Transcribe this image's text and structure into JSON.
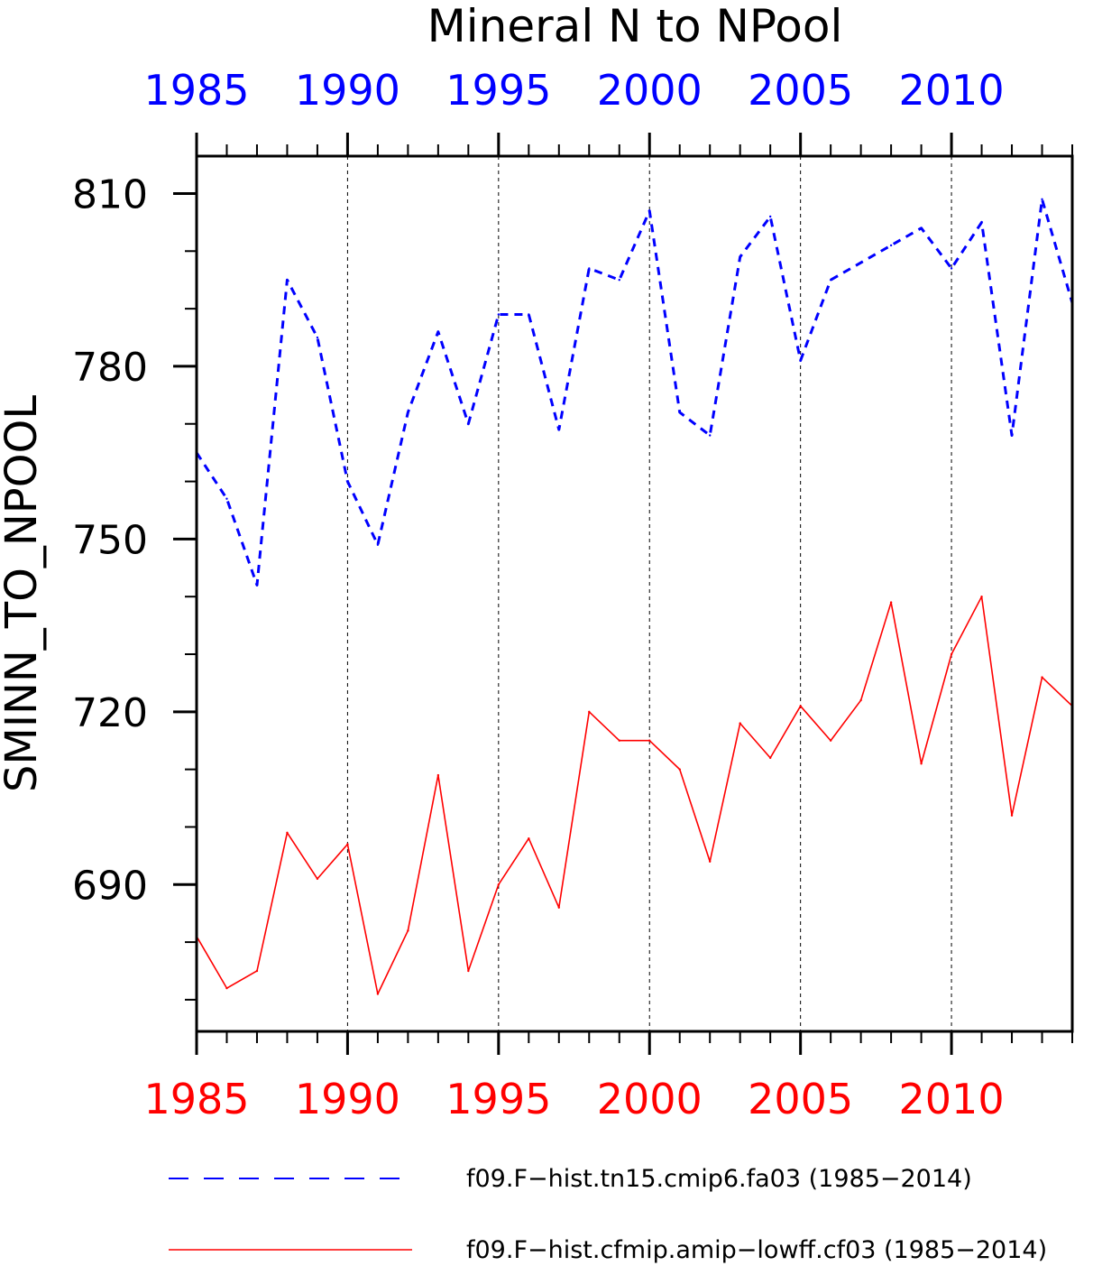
{
  "chart_data": {
    "type": "line",
    "title": "Mineral N to NPool",
    "ylabel": "SMINN_TO_NPOOL",
    "xlabel": "",
    "xlim": [
      1985,
      2014
    ],
    "ylim": [
      664.5,
      816.5
    ],
    "x_ticks": [
      1985,
      1990,
      1995,
      2000,
      2005,
      2010
    ],
    "x_tick_labels": [
      "1985",
      "1990",
      "1995",
      "2000",
      "2005",
      "2010"
    ],
    "y_ticks": [
      690,
      720,
      750,
      780,
      810
    ],
    "y_tick_labels": [
      "690",
      "720",
      "750",
      "780",
      "810"
    ],
    "y_minor_step": 10,
    "grid": "dashed vertical lines at major x ticks",
    "legend_placement": "bottom",
    "colors": {
      "series_1": "#0000ff",
      "series_2": "#ff0000",
      "axes": "#000000"
    },
    "x": [
      1985,
      1986,
      1987,
      1988,
      1989,
      1990,
      1991,
      1992,
      1993,
      1994,
      1995,
      1996,
      1997,
      1998,
      1999,
      2000,
      2001,
      2002,
      2003,
      2004,
      2005,
      2006,
      2007,
      2008,
      2009,
      2010,
      2011,
      2012,
      2013,
      2014
    ],
    "series": [
      {
        "name": "f09.F−hist.tn15.cmip6.fa03 (1985−2014)",
        "line_style": "dashed",
        "values": [
          765,
          757,
          742,
          795,
          785,
          760,
          749,
          772,
          786,
          770,
          789,
          789,
          769,
          797,
          795,
          807,
          772,
          768,
          799,
          806,
          781,
          795,
          798,
          801,
          804,
          797,
          805,
          768,
          809,
          791
        ]
      },
      {
        "name": "f09.F−hist.cfmip.amip−lowff.cf03 (1985−2014)",
        "line_style": "solid",
        "values": [
          681,
          672,
          675,
          699,
          691,
          697,
          671,
          682,
          709,
          675,
          690,
          698,
          686,
          720,
          715,
          715,
          710,
          694,
          718,
          712,
          721,
          715,
          722,
          739,
          711,
          730,
          740,
          702,
          726,
          721
        ]
      }
    ]
  }
}
